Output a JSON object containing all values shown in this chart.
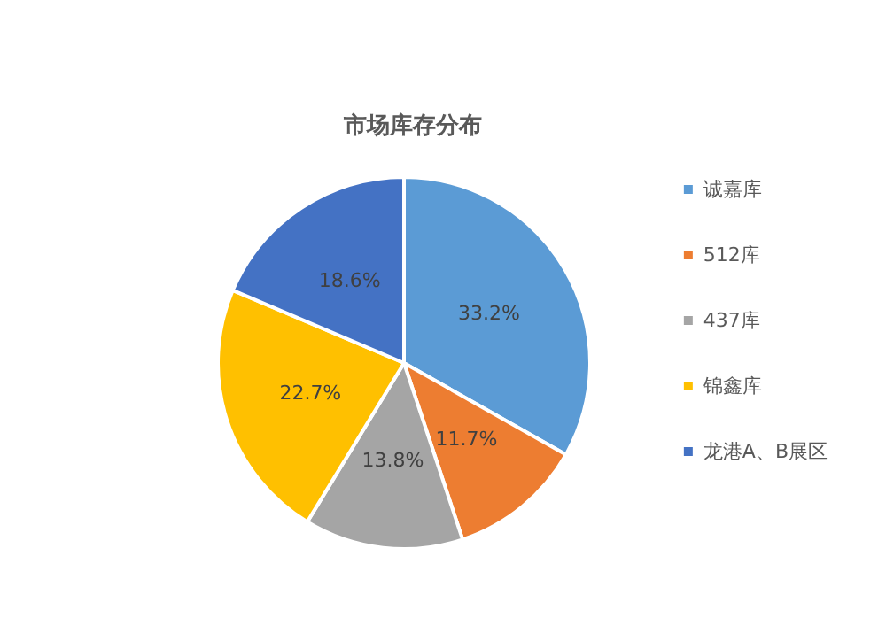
{
  "chart_data": {
    "type": "pie",
    "title": "市场库存分布",
    "categories": [
      "诚嘉库",
      "512库",
      "437库",
      "锦鑫库",
      "龙港A、B展区"
    ],
    "values": [
      33.2,
      11.7,
      13.8,
      22.7,
      18.6
    ],
    "colors": [
      "#5b9bd5",
      "#ed7d31",
      "#a5a5a5",
      "#ffc000",
      "#4472c4"
    ],
    "value_labels": [
      "33.2%",
      "11.7%",
      "13.8%",
      "22.7%",
      "18.6%"
    ],
    "legend": "right"
  }
}
